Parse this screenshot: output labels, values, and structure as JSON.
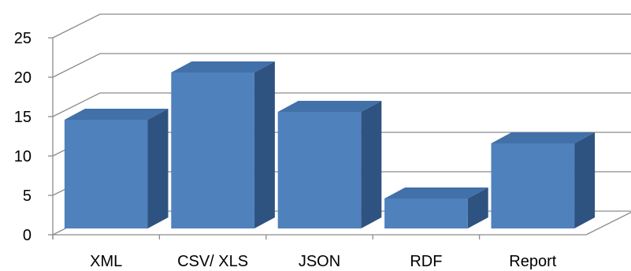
{
  "chart_data": {
    "type": "bar",
    "style": "3d-column",
    "categories": [
      "XML",
      "CSV/ XLS",
      "JSON",
      "RDF",
      "Report"
    ],
    "values": [
      16,
      22,
      17,
      6,
      13
    ],
    "title": "",
    "xlabel": "",
    "ylabel": "",
    "ylim": [
      0,
      25
    ],
    "yticks": [
      0,
      5,
      10,
      15,
      20,
      25
    ],
    "ytick_labels": [
      "0",
      "5",
      "10",
      "15",
      "20",
      "25"
    ],
    "grid": true,
    "legend": "none",
    "colors": {
      "bar_front": "#4f81bd",
      "bar_top": "#4270a8",
      "bar_side": "#2f5380",
      "gridline": "#8c8c8c"
    }
  }
}
